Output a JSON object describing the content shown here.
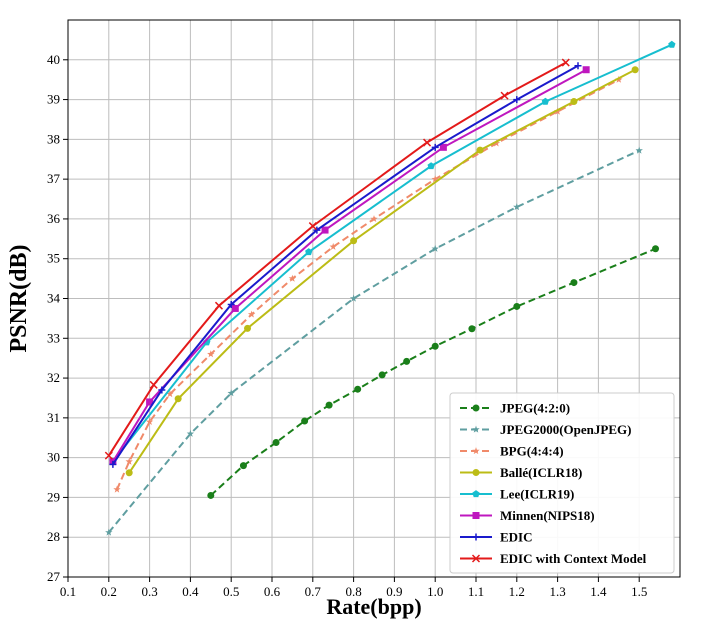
{
  "chart_data": {
    "type": "line",
    "title": "",
    "xlabel": "Rate(bpp)",
    "ylabel": "PSNR(dB)",
    "xlim": [
      0.1,
      1.6
    ],
    "ylim": [
      27,
      41
    ],
    "xticks": [
      "0.1",
      "0.2",
      "0.3",
      "0.4",
      "0.5",
      "0.6",
      "0.7",
      "0.8",
      "0.9",
      "1.0",
      "1.1",
      "1.2",
      "1.3",
      "1.4",
      "1.5"
    ],
    "yticks": [
      "27",
      "28",
      "29",
      "30",
      "31",
      "32",
      "33",
      "34",
      "35",
      "36",
      "37",
      "38",
      "39",
      "40"
    ],
    "grid": true,
    "legend_position": "bottom-right",
    "series": [
      {
        "name": "JPEG(4:2:0)",
        "color": "#1a7f1a",
        "dash": "dashed",
        "marker": "circle",
        "x": [
          0.45,
          0.53,
          0.61,
          0.68,
          0.74,
          0.81,
          0.87,
          0.93,
          1.0,
          1.09,
          1.2,
          1.34,
          1.54
        ],
        "y": [
          29.05,
          29.8,
          30.38,
          30.92,
          31.32,
          31.72,
          32.08,
          32.42,
          32.8,
          33.24,
          33.8,
          34.4,
          35.25
        ]
      },
      {
        "name": "JPEG2000(OpenJPEG)",
        "color": "#5f9ea0",
        "dash": "dashed",
        "marker": "star",
        "x": [
          0.2,
          0.4,
          0.5,
          0.8,
          1.0,
          1.2,
          1.5
        ],
        "y": [
          28.12,
          30.6,
          31.62,
          34.0,
          35.25,
          36.3,
          37.72
        ]
      },
      {
        "name": "BPG(4:4:4)",
        "color": "#f08a6a",
        "dash": "dashed",
        "marker": "star",
        "x": [
          0.22,
          0.25,
          0.3,
          0.35,
          0.45,
          0.55,
          0.65,
          0.75,
          0.85,
          1.0,
          1.15,
          1.3,
          1.45
        ],
        "y": [
          29.2,
          29.9,
          30.9,
          31.6,
          32.6,
          33.6,
          34.5,
          35.3,
          36.0,
          37.0,
          37.9,
          38.7,
          39.5
        ]
      },
      {
        "name": "Ballé(ICLR18)",
        "color": "#bcbc16",
        "dash": "solid",
        "marker": "circle",
        "x": [
          0.25,
          0.37,
          0.54,
          0.8,
          1.11,
          1.34,
          1.49
        ],
        "y": [
          29.62,
          31.48,
          33.25,
          35.45,
          37.73,
          38.95,
          39.75
        ]
      },
      {
        "name": "Lee(ICLR19)",
        "color": "#17becf",
        "dash": "solid",
        "marker": "pentagon",
        "x": [
          0.21,
          0.44,
          0.69,
          0.99,
          1.27,
          1.58
        ],
        "y": [
          29.9,
          32.9,
          35.17,
          37.33,
          38.95,
          40.38
        ]
      },
      {
        "name": "Minnen(NIPS18)",
        "color": "#bf17bf",
        "dash": "solid",
        "marker": "square",
        "x": [
          0.21,
          0.3,
          0.51,
          0.73,
          1.02,
          1.37
        ],
        "y": [
          29.9,
          31.4,
          33.75,
          35.72,
          37.8,
          39.75
        ]
      },
      {
        "name": "EDIC",
        "color": "#1a1acc",
        "dash": "solid",
        "marker": "plus",
        "x": [
          0.21,
          0.33,
          0.5,
          0.71,
          1.0,
          1.2,
          1.35
        ],
        "y": [
          29.83,
          31.7,
          33.85,
          35.72,
          37.8,
          39.0,
          39.85
        ]
      },
      {
        "name": "EDIC with Context Model",
        "color": "#e31a1a",
        "dash": "solid",
        "marker": "x",
        "x": [
          0.2,
          0.31,
          0.47,
          0.7,
          0.98,
          1.17,
          1.32
        ],
        "y": [
          30.05,
          31.83,
          33.82,
          35.82,
          37.92,
          39.1,
          39.93
        ]
      }
    ]
  }
}
